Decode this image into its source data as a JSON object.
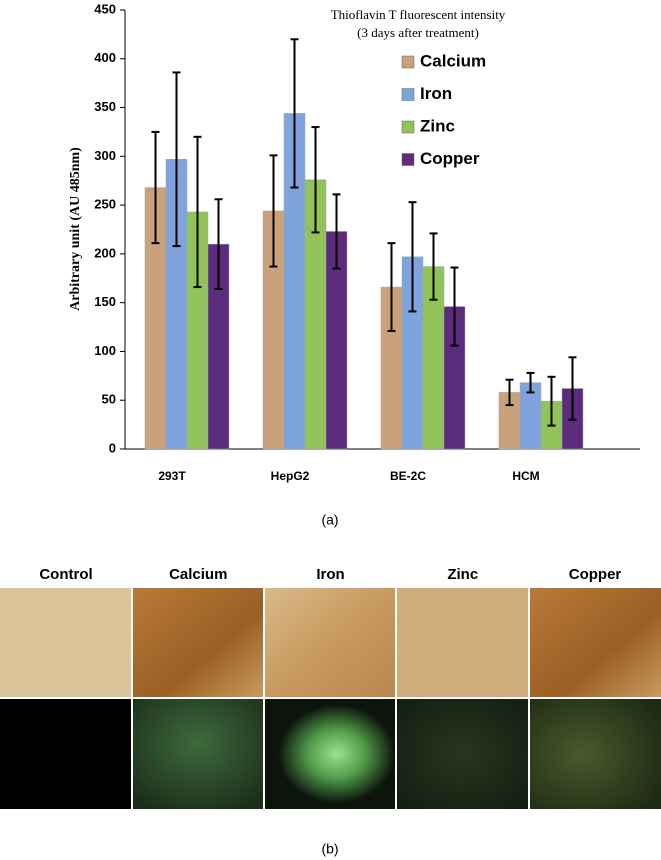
{
  "chart_data": {
    "type": "bar",
    "title": "Thioflavin T fluorescent intensity",
    "subtitle": "(3 days after treatment)",
    "y_label": "Arbitrary unit (AU 485nm)",
    "categories": [
      "293T",
      "HepG2",
      "BE-2C",
      "HCM"
    ],
    "series": [
      {
        "name": "Calcium",
        "color": "#c9a27c",
        "values": [
          268,
          244,
          166,
          58
        ],
        "errors": [
          57,
          57,
          45,
          13
        ]
      },
      {
        "name": "Iron",
        "color": "#7fa3dc",
        "values": [
          297,
          344,
          197,
          68
        ],
        "errors": [
          89,
          76,
          56,
          10
        ]
      },
      {
        "name": "Zinc",
        "color": "#92c25a",
        "values": [
          243,
          276,
          187,
          49
        ],
        "errors": [
          77,
          54,
          34,
          25
        ]
      },
      {
        "name": "Copper",
        "color": "#5b2b7c",
        "values": [
          210,
          223,
          146,
          62
        ],
        "errors": [
          46,
          38,
          40,
          32
        ]
      }
    ],
    "ylim": [
      0,
      450
    ],
    "yticks": [
      0,
      50,
      100,
      150,
      200,
      250,
      300,
      350,
      400,
      450
    ],
    "grid": false
  },
  "figure": {
    "panel_labels": [
      "(a)",
      "(b)"
    ],
    "columns": [
      "Control",
      "Calcium",
      "Iron",
      "Zinc",
      "Copper"
    ]
  }
}
